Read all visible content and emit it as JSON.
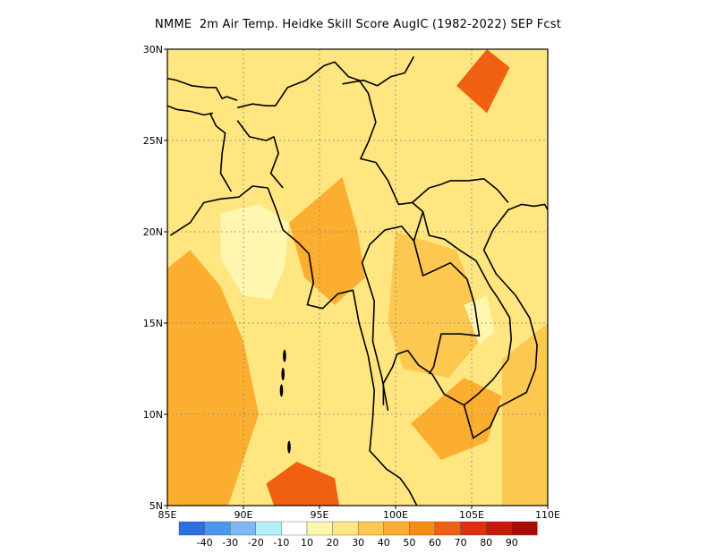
{
  "title": "NMME  2m Air Temp. Heidke Skill Score AugIC (1982-2022) SEP Fcst",
  "map": {
    "lon_range": [
      85,
      110
    ],
    "lat_range": [
      5,
      30
    ],
    "lon_ticks": [
      "85E",
      "90E",
      "95E",
      "100E",
      "105E",
      "110E"
    ],
    "lat_ticks": [
      "5N",
      "10N",
      "15N",
      "20N",
      "25N",
      "30N"
    ],
    "grid": "dotted",
    "background_level": 20
  },
  "colorbar": {
    "colors": [
      "#2a6ee8",
      "#4a96f0",
      "#7cb8f5",
      "#b4f0fa",
      "#ffffff",
      "#fff7b0",
      "#ffe680",
      "#fcc850",
      "#fbae30",
      "#f88c10",
      "#f06010",
      "#e03010",
      "#c81808",
      "#a80a05"
    ],
    "labels": [
      "-40",
      "-30",
      "-20",
      "-10",
      "10",
      "20",
      "30",
      "40",
      "50",
      "60",
      "70",
      "80",
      "90"
    ]
  },
  "skill_regions": [
    {
      "region": "bay-of-bengal-west",
      "level": 40
    },
    {
      "region": "central-bay-of-bengal",
      "level": 10
    },
    {
      "region": "andaman-sea-south",
      "level": 60
    },
    {
      "region": "myanmar-central",
      "level": 40
    },
    {
      "region": "thailand-laos",
      "level": 30
    },
    {
      "region": "cambodia-south",
      "level": 40
    },
    {
      "region": "south-china-sea-east",
      "level": 30
    },
    {
      "region": "tibet-north",
      "level": 20
    },
    {
      "region": "south-china-north",
      "level": 60
    },
    {
      "region": "gulf-of-thailand-east",
      "level": 10
    }
  ]
}
